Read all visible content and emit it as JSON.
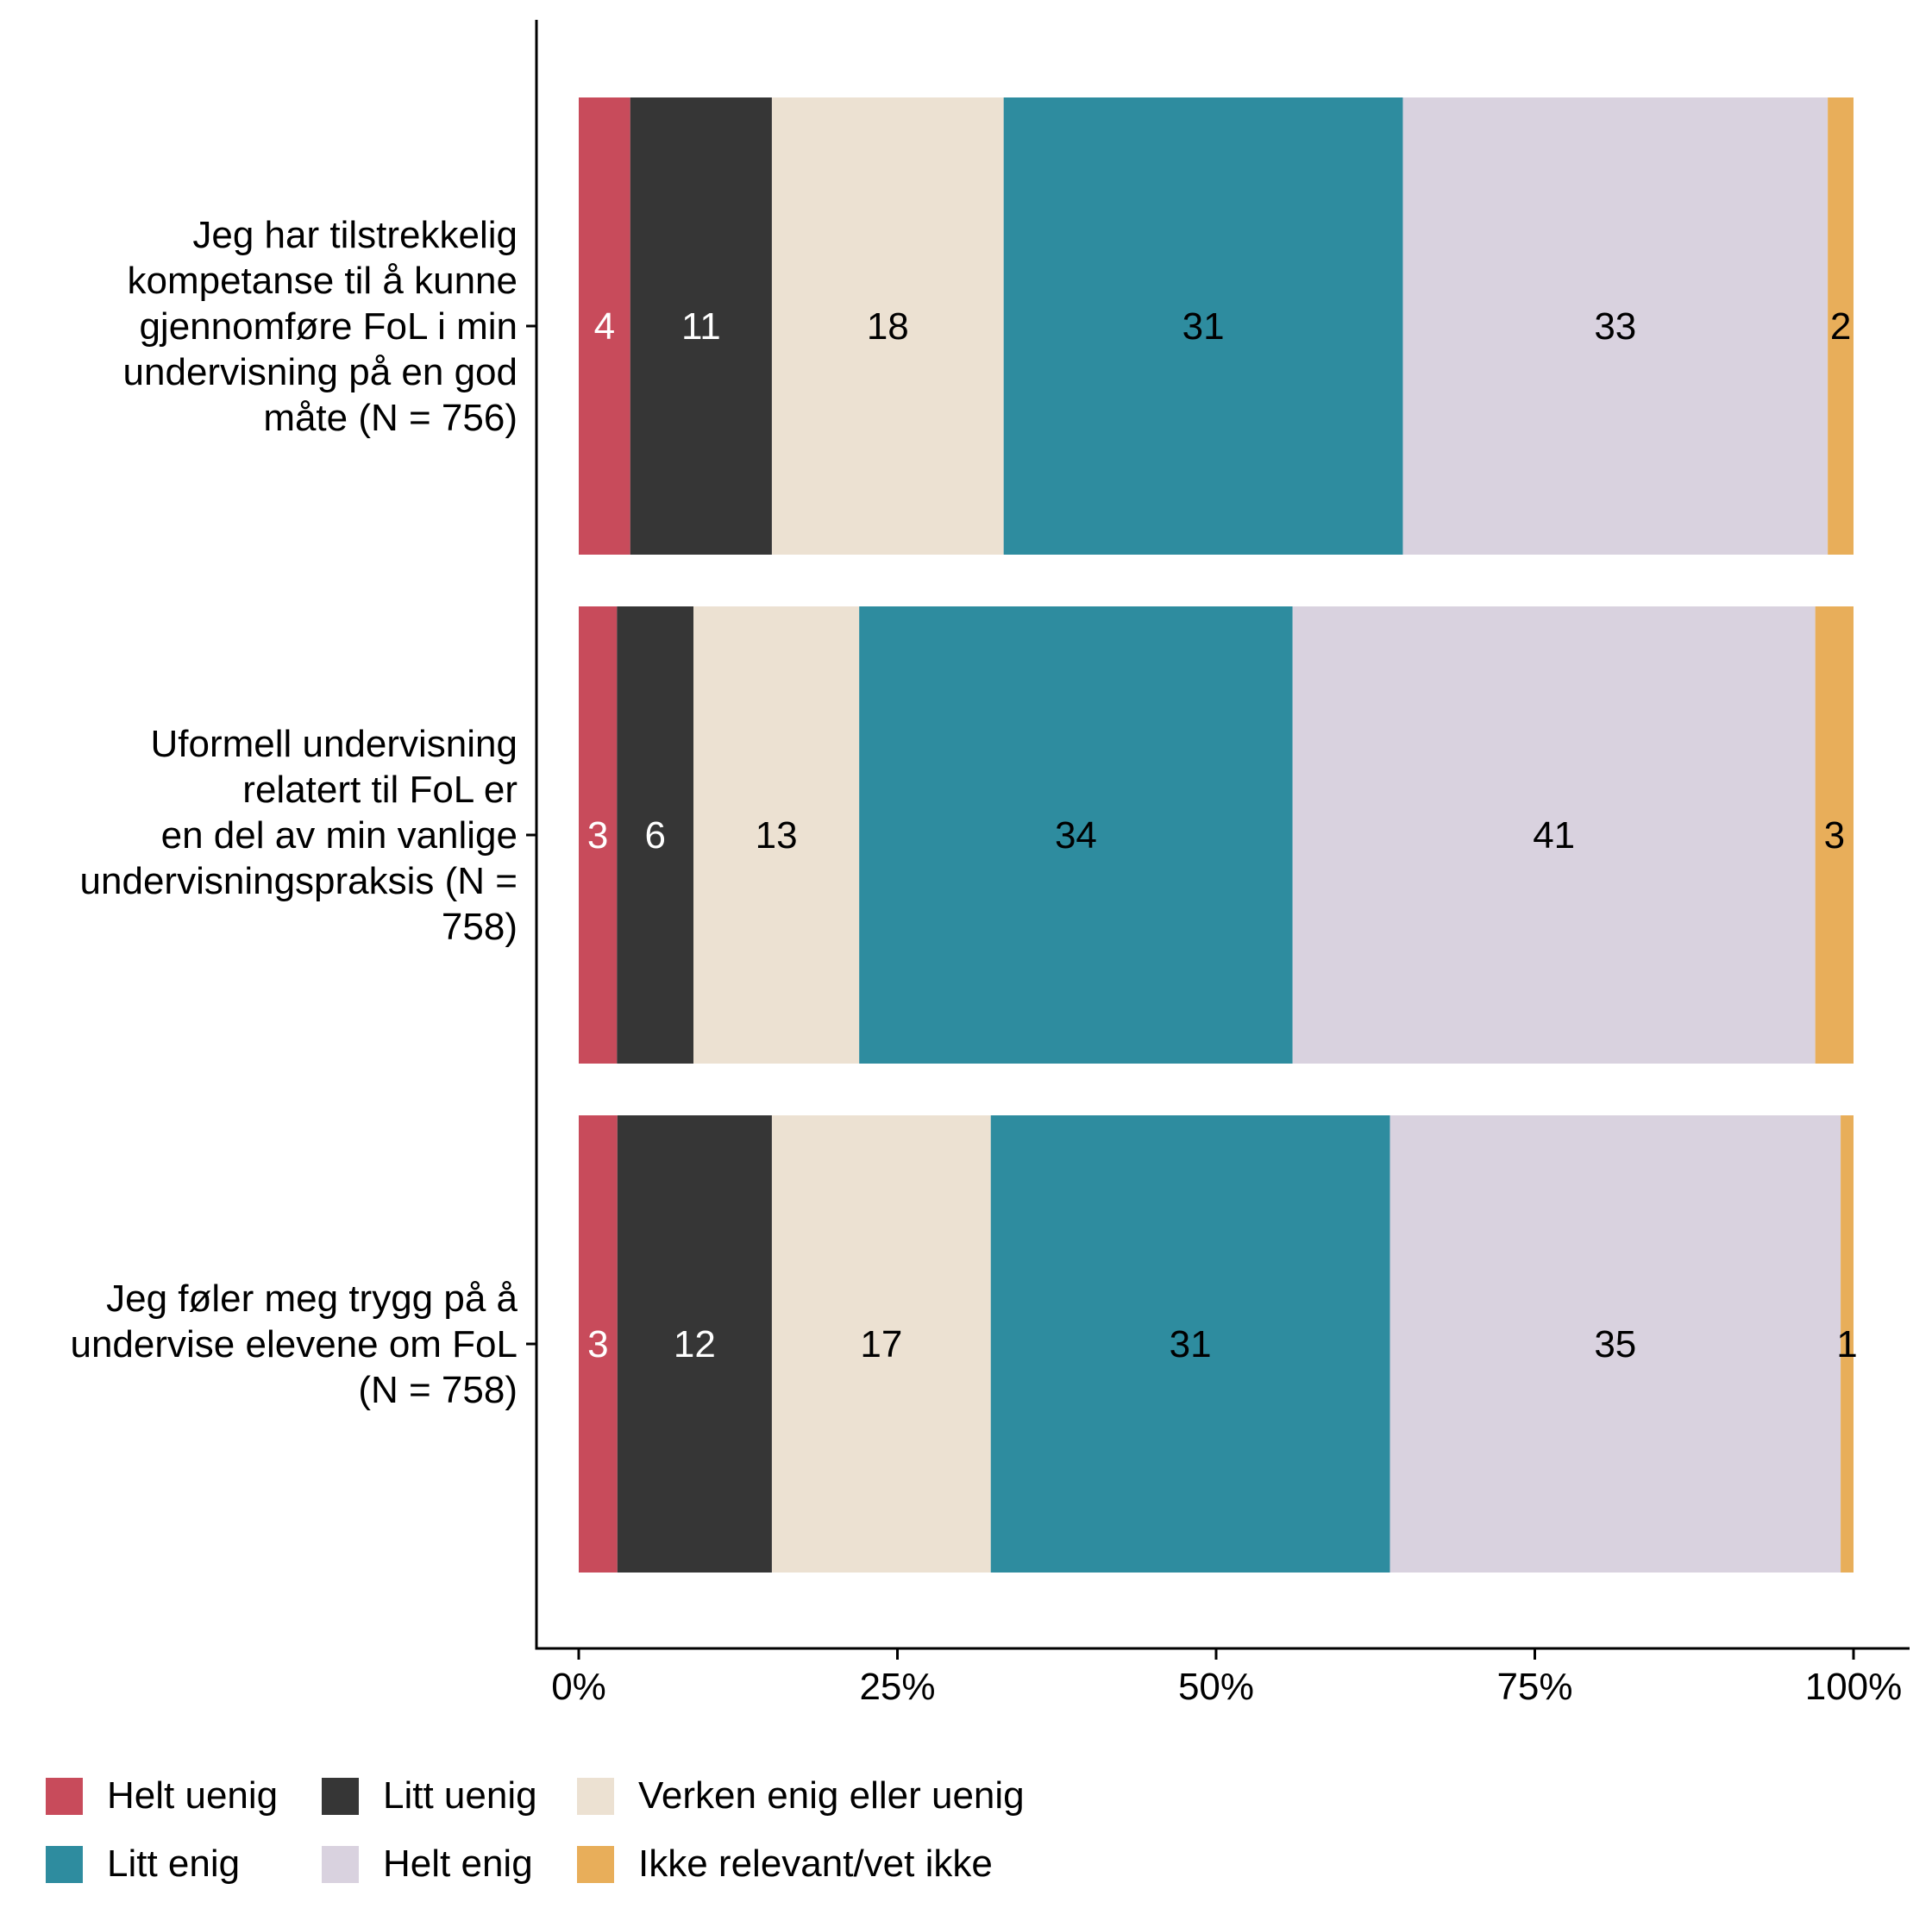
{
  "chart_data": {
    "type": "bar",
    "orientation": "horizontal",
    "stacked": true,
    "categories": [
      "Jeg har tilstrekkelig kompetanse til å kunne gjennomføre FoL i min undervisning på en god måte (N = 756)",
      "Uformell undervisning relatert til FoL er en del av min vanlige undervisningspraksis (N = 758)",
      "Jeg føler meg trygg på å undervise elevene om FoL (N = 758)"
    ],
    "category_lines": [
      [
        "Jeg har tilstrekkelig",
        "kompetanse til å kunne",
        "gjennomføre FoL i min",
        "undervisning på en god",
        "måte (N = 756)"
      ],
      [
        "Uformell undervisning",
        "relatert til FoL er",
        "en del av min vanlige",
        "undervisningspraksis (N =",
        "758)"
      ],
      [
        "Jeg føler meg trygg på å",
        "undervise elevene om FoL",
        "(N = 758)"
      ]
    ],
    "series": [
      {
        "name": "Helt uenig",
        "color": "#C84B5B",
        "label_color": "#FFFFFF",
        "values": [
          4,
          3,
          3
        ]
      },
      {
        "name": "Litt uenig",
        "color": "#363636",
        "label_color": "#FFFFFF",
        "values": [
          11,
          6,
          12
        ]
      },
      {
        "name": "Verken enig eller uenig",
        "color": "#ECE1D2",
        "label_color": "#000000",
        "values": [
          18,
          13,
          17
        ]
      },
      {
        "name": "Litt enig",
        "color": "#2E8C9F",
        "label_color": "#000000",
        "values": [
          31,
          34,
          31
        ]
      },
      {
        "name": "Helt enig",
        "color": "#D9D2DF",
        "label_color": "#000000",
        "values": [
          33,
          41,
          35
        ]
      },
      {
        "name": "Ikke relevant/vet ikke",
        "color": "#E8AE5A",
        "label_color": "#000000",
        "values": [
          2,
          3,
          1
        ]
      }
    ],
    "xlim": [
      0,
      100
    ],
    "xticks": [
      0,
      25,
      50,
      75,
      100
    ],
    "xtick_labels": [
      "0%",
      "25%",
      "50%",
      "75%",
      "100%"
    ],
    "title": "",
    "xlabel": "",
    "ylabel": "",
    "grid": false,
    "legend_position": "bottom-left"
  }
}
